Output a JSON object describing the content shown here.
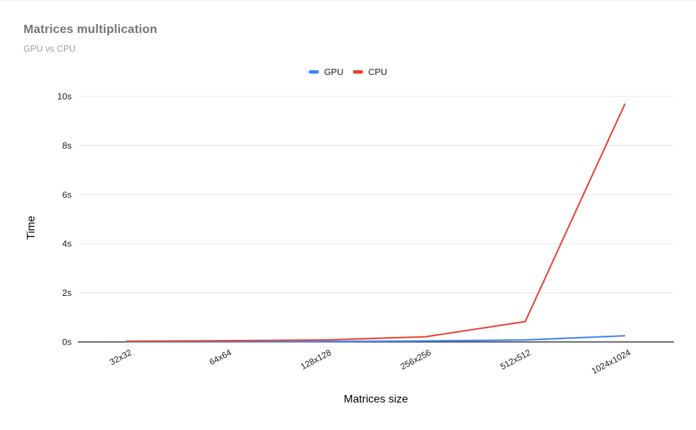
{
  "chart_data": {
    "type": "line",
    "title": "Matrices multiplication",
    "subtitle": "GPU vs CPU",
    "xlabel": "Matrices size",
    "ylabel": "Time",
    "categories": [
      "32x32",
      "64x64",
      "128x128",
      "256x256",
      "512x512",
      "1024x1024"
    ],
    "series": [
      {
        "name": "GPU",
        "color": "#4285f4",
        "values": [
          0.01,
          0.01,
          0.02,
          0.04,
          0.08,
          0.25
        ]
      },
      {
        "name": "CPU",
        "color": "#ea4335",
        "values": [
          0.03,
          0.05,
          0.08,
          0.21,
          0.83,
          9.7
        ]
      }
    ],
    "ylim": [
      0,
      10
    ],
    "yticks": [
      {
        "value": 0,
        "label": "0s"
      },
      {
        "value": 2,
        "label": "2s"
      },
      {
        "value": 4,
        "label": "4s"
      },
      {
        "value": 6,
        "label": "6s"
      },
      {
        "value": 8,
        "label": "8s"
      },
      {
        "value": 10,
        "label": "10s"
      }
    ],
    "grid": true,
    "legend_position": "top-center",
    "colors": {
      "grid": "#e3e3e3",
      "axis": "#333333",
      "tick_text": "#1a1a1a",
      "title": "#757575",
      "subtitle": "#9e9e9e",
      "axis_title": "#000000",
      "background": "#ffffff"
    }
  }
}
